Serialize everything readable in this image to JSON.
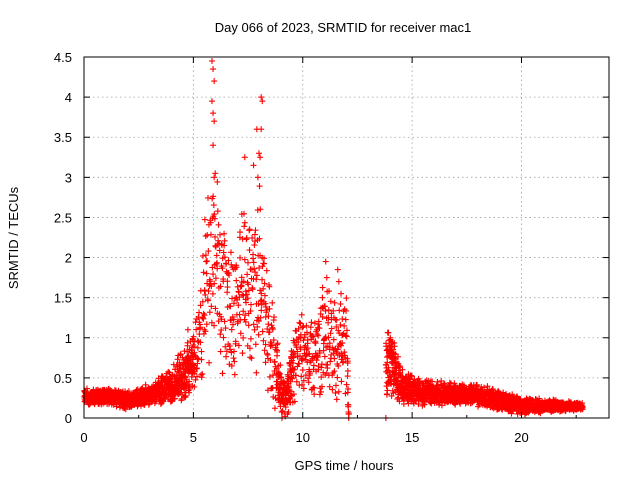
{
  "chart_data": {
    "type": "scatter",
    "title": "Day 066 of 2023, SRMTID for receiver mac1",
    "xlabel": "GPS time / hours",
    "ylabel": "SRMTID / TECUs",
    "xlim": [
      0,
      24
    ],
    "ylim": [
      0,
      4.5
    ],
    "xticks": [
      0,
      5,
      10,
      15,
      20
    ],
    "yticks": [
      0,
      0.5,
      1,
      1.5,
      2,
      2.5,
      3,
      3.5,
      4,
      4.5
    ],
    "xtick_labels": [
      "0",
      "5",
      "10",
      "15",
      "20"
    ],
    "ytick_labels": [
      "0",
      "0.5",
      "1",
      "1.5",
      "2",
      "2.5",
      "3",
      "3.5",
      "4",
      "4.5"
    ],
    "grid": true,
    "marker": "+",
    "color": "#ff0000",
    "series": [
      {
        "name": "SRMTID",
        "profile": [
          {
            "t": 0.0,
            "y": 0.25,
            "spread": 0.12
          },
          {
            "t": 1.0,
            "y": 0.28,
            "spread": 0.12
          },
          {
            "t": 2.0,
            "y": 0.22,
            "spread": 0.12
          },
          {
            "t": 3.0,
            "y": 0.3,
            "spread": 0.15
          },
          {
            "t": 4.0,
            "y": 0.4,
            "spread": 0.25
          },
          {
            "t": 4.8,
            "y": 0.6,
            "spread": 0.4
          },
          {
            "t": 5.3,
            "y": 0.9,
            "spread": 0.6
          },
          {
            "t": 5.7,
            "y": 2.0,
            "spread": 1.4
          },
          {
            "t": 6.0,
            "y": 2.0,
            "spread": 1.4
          },
          {
            "t": 6.5,
            "y": 1.4,
            "spread": 1.0
          },
          {
            "t": 7.0,
            "y": 1.5,
            "spread": 1.1
          },
          {
            "t": 7.5,
            "y": 1.6,
            "spread": 1.1
          },
          {
            "t": 8.0,
            "y": 1.8,
            "spread": 1.3
          },
          {
            "t": 8.5,
            "y": 1.0,
            "spread": 0.8
          },
          {
            "t": 9.0,
            "y": 0.3,
            "spread": 0.3
          },
          {
            "t": 9.3,
            "y": 0.3,
            "spread": 0.3
          },
          {
            "t": 9.7,
            "y": 0.8,
            "spread": 0.6
          },
          {
            "t": 10.5,
            "y": 0.8,
            "spread": 0.6
          },
          {
            "t": 11.0,
            "y": 1.0,
            "spread": 0.8
          },
          {
            "t": 11.5,
            "y": 0.9,
            "spread": 0.7
          },
          {
            "t": 12.0,
            "y": 1.0,
            "spread": 0.8
          },
          {
            "t": 12.1,
            "y": 0.0,
            "spread": 0.0
          },
          {
            "t": 14.0,
            "y": 0.7,
            "spread": 0.5
          },
          {
            "t": 14.5,
            "y": 0.4,
            "spread": 0.25
          },
          {
            "t": 15.0,
            "y": 0.35,
            "spread": 0.2
          },
          {
            "t": 16.0,
            "y": 0.3,
            "spread": 0.18
          },
          {
            "t": 17.0,
            "y": 0.3,
            "spread": 0.15
          },
          {
            "t": 18.0,
            "y": 0.28,
            "spread": 0.15
          },
          {
            "t": 19.0,
            "y": 0.22,
            "spread": 0.15
          },
          {
            "t": 20.0,
            "y": 0.15,
            "spread": 0.12
          },
          {
            "t": 21.0,
            "y": 0.15,
            "spread": 0.1
          },
          {
            "t": 22.0,
            "y": 0.15,
            "spread": 0.07
          },
          {
            "t": 22.8,
            "y": 0.14,
            "spread": 0.05
          }
        ],
        "gaps": [
          [
            12.1,
            13.8
          ]
        ],
        "highlights": [
          {
            "x": 5.85,
            "y": 4.45
          },
          {
            "x": 5.9,
            "y": 4.35
          },
          {
            "x": 5.95,
            "y": 4.2
          },
          {
            "x": 5.85,
            "y": 3.95
          },
          {
            "x": 5.9,
            "y": 3.8
          },
          {
            "x": 5.95,
            "y": 3.7
          },
          {
            "x": 5.9,
            "y": 3.4
          },
          {
            "x": 6.0,
            "y": 3.05
          },
          {
            "x": 5.95,
            "y": 3.0
          },
          {
            "x": 7.35,
            "y": 3.25
          },
          {
            "x": 7.75,
            "y": 3.15
          },
          {
            "x": 8.1,
            "y": 4.0
          },
          {
            "x": 8.15,
            "y": 3.95
          },
          {
            "x": 7.9,
            "y": 3.6
          },
          {
            "x": 8.1,
            "y": 3.6
          },
          {
            "x": 8.0,
            "y": 3.3
          },
          {
            "x": 8.05,
            "y": 3.25
          },
          {
            "x": 7.95,
            "y": 3.0
          },
          {
            "x": 11.05,
            "y": 1.95
          },
          {
            "x": 11.6,
            "y": 1.85
          },
          {
            "x": 11.1,
            "y": 1.75
          },
          {
            "x": 11.65,
            "y": 1.7
          },
          {
            "x": 10.9,
            "y": 1.5
          },
          {
            "x": 11.75,
            "y": 1.55
          },
          {
            "x": 5.5,
            "y": 1.1
          },
          {
            "x": 4.75,
            "y": 1.1
          },
          {
            "x": 14.0,
            "y": 1.0
          },
          {
            "x": 14.05,
            "y": 0.95
          },
          {
            "x": 13.95,
            "y": 0.8
          },
          {
            "x": 9.05,
            "y": 0.0
          },
          {
            "x": 9.2,
            "y": 0.02
          },
          {
            "x": 9.3,
            "y": 0.05
          },
          {
            "x": 13.8,
            "y": 0.0
          },
          {
            "x": 12.1,
            "y": 0.0
          }
        ]
      }
    ]
  }
}
